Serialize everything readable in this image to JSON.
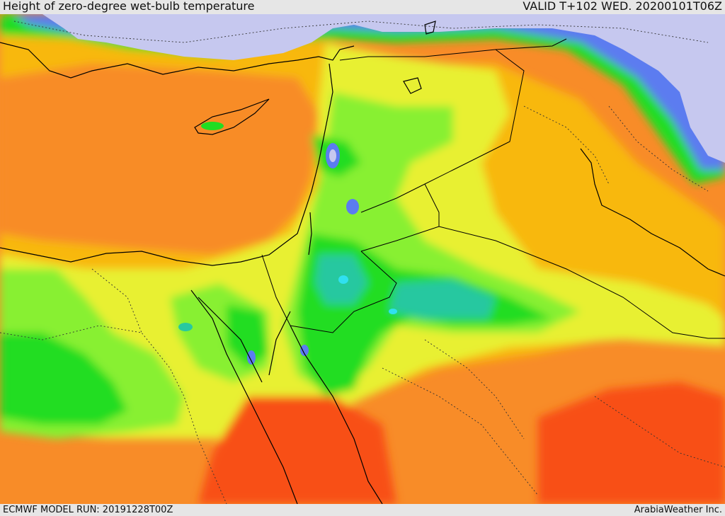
{
  "header": {
    "title": "Height of zero-degree wet-bulb temperature",
    "valid": "VALID T+102 WED. 20200101T06Z"
  },
  "footer": {
    "model_run": "ECMWF MODEL RUN: 20191228T00Z",
    "credit": "ArabiaWeather Inc."
  },
  "palette": {
    "lowest": "#c6c8ef",
    "very_low": "#5b7cf0",
    "low": "#28c8a0",
    "cyan": "#30e0f0",
    "green": "#22dd22",
    "light_green": "#88f030",
    "yellow": "#e8f030",
    "orange_light": "#f8b810",
    "orange": "#f88c28",
    "red_orange": "#f85018"
  }
}
